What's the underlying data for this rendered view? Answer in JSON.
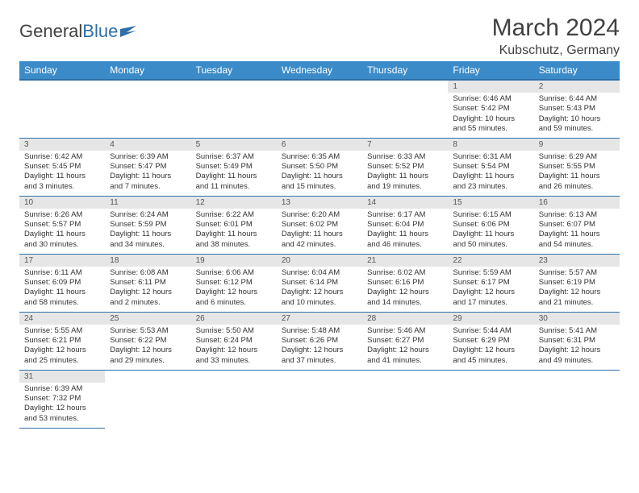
{
  "brand": {
    "part1": "General",
    "part2": "Blue"
  },
  "title": "March 2024",
  "location": "Kubschutz, Germany",
  "colors": {
    "header_bg": "#3b8bc9",
    "header_border": "#2f6fa7",
    "daynum_bg": "#e6e6e6",
    "text": "#333333",
    "page_bg": "#ffffff"
  },
  "weekdays": [
    "Sunday",
    "Monday",
    "Tuesday",
    "Wednesday",
    "Thursday",
    "Friday",
    "Saturday"
  ],
  "weeks": [
    [
      null,
      null,
      null,
      null,
      null,
      {
        "n": "1",
        "sr": "Sunrise: 6:46 AM",
        "ss": "Sunset: 5:42 PM",
        "dl": "Daylight: 10 hours and 55 minutes."
      },
      {
        "n": "2",
        "sr": "Sunrise: 6:44 AM",
        "ss": "Sunset: 5:43 PM",
        "dl": "Daylight: 10 hours and 59 minutes."
      }
    ],
    [
      {
        "n": "3",
        "sr": "Sunrise: 6:42 AM",
        "ss": "Sunset: 5:45 PM",
        "dl": "Daylight: 11 hours and 3 minutes."
      },
      {
        "n": "4",
        "sr": "Sunrise: 6:39 AM",
        "ss": "Sunset: 5:47 PM",
        "dl": "Daylight: 11 hours and 7 minutes."
      },
      {
        "n": "5",
        "sr": "Sunrise: 6:37 AM",
        "ss": "Sunset: 5:49 PM",
        "dl": "Daylight: 11 hours and 11 minutes."
      },
      {
        "n": "6",
        "sr": "Sunrise: 6:35 AM",
        "ss": "Sunset: 5:50 PM",
        "dl": "Daylight: 11 hours and 15 minutes."
      },
      {
        "n": "7",
        "sr": "Sunrise: 6:33 AM",
        "ss": "Sunset: 5:52 PM",
        "dl": "Daylight: 11 hours and 19 minutes."
      },
      {
        "n": "8",
        "sr": "Sunrise: 6:31 AM",
        "ss": "Sunset: 5:54 PM",
        "dl": "Daylight: 11 hours and 23 minutes."
      },
      {
        "n": "9",
        "sr": "Sunrise: 6:29 AM",
        "ss": "Sunset: 5:55 PM",
        "dl": "Daylight: 11 hours and 26 minutes."
      }
    ],
    [
      {
        "n": "10",
        "sr": "Sunrise: 6:26 AM",
        "ss": "Sunset: 5:57 PM",
        "dl": "Daylight: 11 hours and 30 minutes."
      },
      {
        "n": "11",
        "sr": "Sunrise: 6:24 AM",
        "ss": "Sunset: 5:59 PM",
        "dl": "Daylight: 11 hours and 34 minutes."
      },
      {
        "n": "12",
        "sr": "Sunrise: 6:22 AM",
        "ss": "Sunset: 6:01 PM",
        "dl": "Daylight: 11 hours and 38 minutes."
      },
      {
        "n": "13",
        "sr": "Sunrise: 6:20 AM",
        "ss": "Sunset: 6:02 PM",
        "dl": "Daylight: 11 hours and 42 minutes."
      },
      {
        "n": "14",
        "sr": "Sunrise: 6:17 AM",
        "ss": "Sunset: 6:04 PM",
        "dl": "Daylight: 11 hours and 46 minutes."
      },
      {
        "n": "15",
        "sr": "Sunrise: 6:15 AM",
        "ss": "Sunset: 6:06 PM",
        "dl": "Daylight: 11 hours and 50 minutes."
      },
      {
        "n": "16",
        "sr": "Sunrise: 6:13 AM",
        "ss": "Sunset: 6:07 PM",
        "dl": "Daylight: 11 hours and 54 minutes."
      }
    ],
    [
      {
        "n": "17",
        "sr": "Sunrise: 6:11 AM",
        "ss": "Sunset: 6:09 PM",
        "dl": "Daylight: 11 hours and 58 minutes."
      },
      {
        "n": "18",
        "sr": "Sunrise: 6:08 AM",
        "ss": "Sunset: 6:11 PM",
        "dl": "Daylight: 12 hours and 2 minutes."
      },
      {
        "n": "19",
        "sr": "Sunrise: 6:06 AM",
        "ss": "Sunset: 6:12 PM",
        "dl": "Daylight: 12 hours and 6 minutes."
      },
      {
        "n": "20",
        "sr": "Sunrise: 6:04 AM",
        "ss": "Sunset: 6:14 PM",
        "dl": "Daylight: 12 hours and 10 minutes."
      },
      {
        "n": "21",
        "sr": "Sunrise: 6:02 AM",
        "ss": "Sunset: 6:16 PM",
        "dl": "Daylight: 12 hours and 14 minutes."
      },
      {
        "n": "22",
        "sr": "Sunrise: 5:59 AM",
        "ss": "Sunset: 6:17 PM",
        "dl": "Daylight: 12 hours and 17 minutes."
      },
      {
        "n": "23",
        "sr": "Sunrise: 5:57 AM",
        "ss": "Sunset: 6:19 PM",
        "dl": "Daylight: 12 hours and 21 minutes."
      }
    ],
    [
      {
        "n": "24",
        "sr": "Sunrise: 5:55 AM",
        "ss": "Sunset: 6:21 PM",
        "dl": "Daylight: 12 hours and 25 minutes."
      },
      {
        "n": "25",
        "sr": "Sunrise: 5:53 AM",
        "ss": "Sunset: 6:22 PM",
        "dl": "Daylight: 12 hours and 29 minutes."
      },
      {
        "n": "26",
        "sr": "Sunrise: 5:50 AM",
        "ss": "Sunset: 6:24 PM",
        "dl": "Daylight: 12 hours and 33 minutes."
      },
      {
        "n": "27",
        "sr": "Sunrise: 5:48 AM",
        "ss": "Sunset: 6:26 PM",
        "dl": "Daylight: 12 hours and 37 minutes."
      },
      {
        "n": "28",
        "sr": "Sunrise: 5:46 AM",
        "ss": "Sunset: 6:27 PM",
        "dl": "Daylight: 12 hours and 41 minutes."
      },
      {
        "n": "29",
        "sr": "Sunrise: 5:44 AM",
        "ss": "Sunset: 6:29 PM",
        "dl": "Daylight: 12 hours and 45 minutes."
      },
      {
        "n": "30",
        "sr": "Sunrise: 5:41 AM",
        "ss": "Sunset: 6:31 PM",
        "dl": "Daylight: 12 hours and 49 minutes."
      }
    ],
    [
      {
        "n": "31",
        "sr": "Sunrise: 6:39 AM",
        "ss": "Sunset: 7:32 PM",
        "dl": "Daylight: 12 hours and 53 minutes."
      },
      null,
      null,
      null,
      null,
      null,
      null
    ]
  ]
}
